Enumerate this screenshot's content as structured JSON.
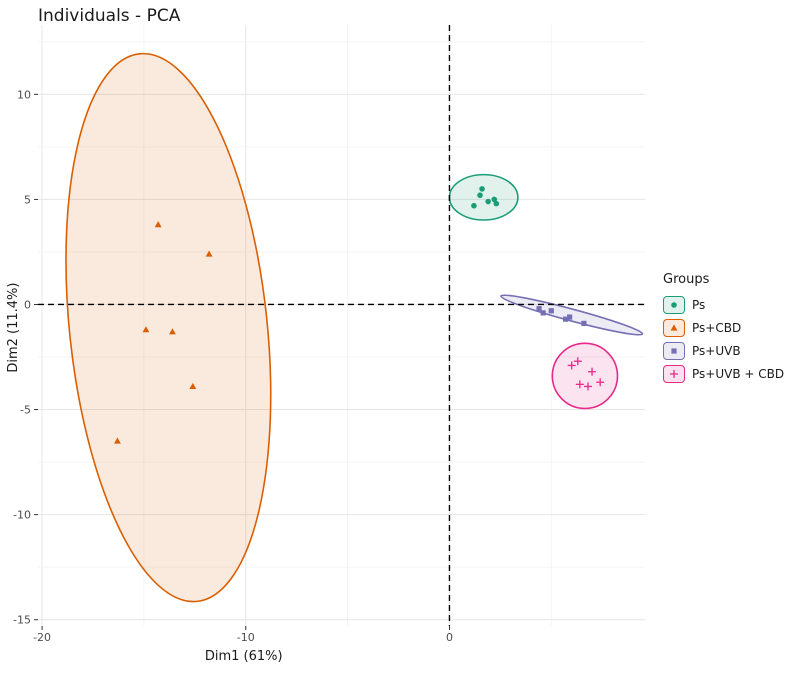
{
  "chart_data": {
    "type": "scatter",
    "title": "Individuals - PCA",
    "xlabel": "Dim1 (61%)",
    "ylabel": "Dim2 (11.4%)",
    "xlim": [
      -20.2,
      9.6
    ],
    "ylim": [
      -15.3,
      13.3
    ],
    "x_ticks": [
      -20,
      -10,
      0
    ],
    "x_tick_labels": [
      "-20",
      "-10",
      "0"
    ],
    "y_ticks": [
      -15,
      -10,
      -5,
      0,
      5,
      10
    ],
    "y_tick_labels": [
      "-15",
      "-10",
      "-5",
      "0",
      "5",
      "10"
    ],
    "grid": true,
    "reference_lines": {
      "x": 0,
      "y": 0,
      "style": "dashed"
    },
    "legend": {
      "title": "Groups",
      "placement": "right"
    },
    "series": [
      {
        "name": "Ps",
        "color": "#1b9e77",
        "marker": "circle",
        "points": [
          [
            1.5,
            5.2
          ],
          [
            1.6,
            5.5
          ],
          [
            2.2,
            5.0
          ],
          [
            1.2,
            4.7
          ],
          [
            1.9,
            4.9
          ],
          [
            2.3,
            4.8
          ]
        ],
        "ellipse": {
          "cx": 1.68,
          "cy": 5.1,
          "rx": 1.68,
          "ry": 1.08,
          "angle_deg": 0
        }
      },
      {
        "name": "Ps+CBD",
        "color": "#d95f02",
        "marker": "triangle",
        "points": [
          [
            -14.3,
            3.8
          ],
          [
            -11.8,
            2.4
          ],
          [
            -14.9,
            -1.2
          ],
          [
            -13.6,
            -1.3
          ],
          [
            -12.6,
            -3.9
          ],
          [
            -16.3,
            -6.5
          ]
        ],
        "ellipse": {
          "cx": -13.8,
          "cy": -1.1,
          "rx": 4.85,
          "ry": 13.1,
          "angle_deg": 6
        }
      },
      {
        "name": "Ps+UVB",
        "color": "#7570b3",
        "marker": "square",
        "points": [
          [
            4.4,
            -0.2
          ],
          [
            4.6,
            -0.4
          ],
          [
            5.0,
            -0.3
          ],
          [
            5.7,
            -0.7
          ],
          [
            5.9,
            -0.6
          ],
          [
            6.6,
            -0.9
          ]
        ],
        "ellipse": {
          "cx": 6.0,
          "cy": -0.5,
          "rx": 3.6,
          "ry": 0.28,
          "angle_deg": -15
        }
      },
      {
        "name": "Ps+UVB + CBD",
        "color": "#e7298a",
        "marker": "plus",
        "points": [
          [
            6.0,
            -2.9
          ],
          [
            6.3,
            -2.7
          ],
          [
            7.0,
            -3.2
          ],
          [
            6.4,
            -3.8
          ],
          [
            6.8,
            -3.9
          ],
          [
            7.4,
            -3.7
          ]
        ],
        "ellipse": {
          "cx": 6.65,
          "cy": -3.4,
          "rx": 1.6,
          "ry": 1.55,
          "angle_deg": 0
        }
      }
    ]
  }
}
